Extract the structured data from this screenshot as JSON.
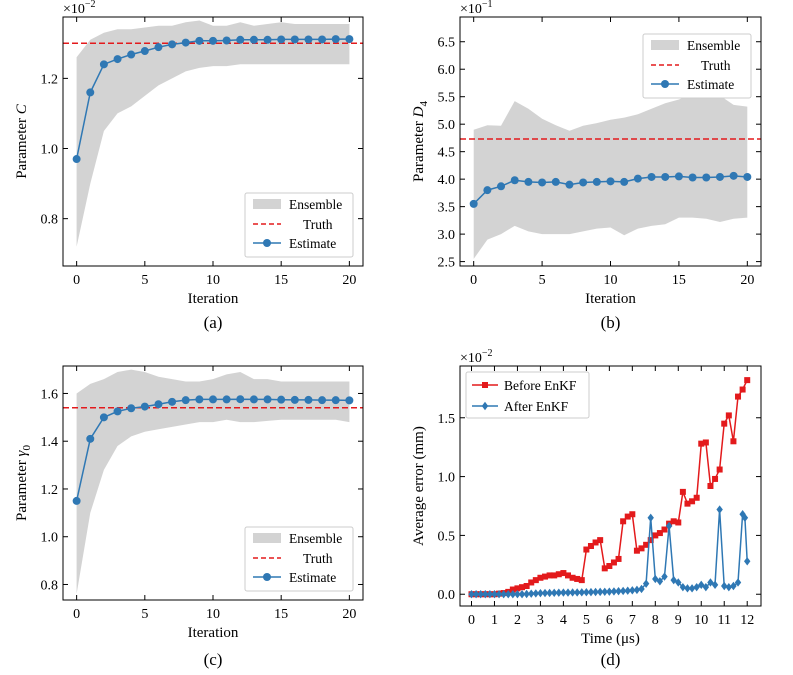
{
  "chart_data": [
    {
      "type": "line",
      "panel": "(a)",
      "xlabel": "Iteration",
      "ylabel_main": "Parameter ",
      "ylabel_italic": "C",
      "ylabel_sub": "",
      "multiplier": {
        "base": "×10",
        "exp": "−2"
      },
      "xlim": [
        -1,
        21
      ],
      "ylim": [
        0.665,
        1.375
      ],
      "xticks": [
        0,
        5,
        10,
        15,
        20
      ],
      "xtick_labels": [
        "0",
        "5",
        "10",
        "15",
        "20"
      ],
      "yticks": [
        0.8,
        1.0,
        1.2
      ],
      "ytick_labels": [
        "0.8",
        "1.0",
        "1.2"
      ],
      "truth": 1.3,
      "legend_position": "lower-right",
      "legend": [
        "Ensemble",
        "Truth",
        "Estimate"
      ],
      "x": [
        0,
        1,
        2,
        3,
        4,
        5,
        6,
        7,
        8,
        9,
        10,
        11,
        12,
        13,
        14,
        15,
        16,
        17,
        18,
        19,
        20
      ],
      "estimate": [
        0.97,
        1.16,
        1.24,
        1.255,
        1.268,
        1.278,
        1.289,
        1.297,
        1.302,
        1.307,
        1.307,
        1.308,
        1.31,
        1.31,
        1.31,
        1.311,
        1.311,
        1.311,
        1.311,
        1.312,
        1.312
      ],
      "ensemble_upper": [
        1.26,
        1.31,
        1.33,
        1.34,
        1.34,
        1.345,
        1.35,
        1.35,
        1.36,
        1.365,
        1.35,
        1.35,
        1.36,
        1.35,
        1.355,
        1.36,
        1.355,
        1.355,
        1.355,
        1.355,
        1.355
      ],
      "ensemble_lower": [
        0.72,
        0.9,
        1.05,
        1.1,
        1.12,
        1.15,
        1.18,
        1.2,
        1.22,
        1.23,
        1.235,
        1.235,
        1.24,
        1.24,
        1.24,
        1.24,
        1.24,
        1.24,
        1.24,
        1.24,
        1.24
      ]
    },
    {
      "type": "line",
      "panel": "(b)",
      "xlabel": "Iteration",
      "ylabel_main": "Parameter ",
      "ylabel_italic": "D",
      "ylabel_sub": "4",
      "multiplier": {
        "base": "×10",
        "exp": "−1"
      },
      "xlim": [
        -1,
        21
      ],
      "ylim": [
        2.42,
        6.95
      ],
      "xticks": [
        0,
        5,
        10,
        15,
        20
      ],
      "xtick_labels": [
        "0",
        "5",
        "10",
        "15",
        "20"
      ],
      "yticks": [
        2.5,
        3.0,
        3.5,
        4.0,
        4.5,
        5.0,
        5.5,
        6.0,
        6.5
      ],
      "ytick_labels": [
        "2.5",
        "3.0",
        "3.5",
        "4.0",
        "4.5",
        "5.0",
        "5.5",
        "6.0",
        "6.5"
      ],
      "truth": 4.73,
      "legend_position": "top-right",
      "legend": [
        "Ensemble",
        "Truth",
        "Estimate"
      ],
      "x": [
        0,
        1,
        2,
        3,
        4,
        5,
        6,
        7,
        8,
        9,
        10,
        11,
        12,
        13,
        14,
        15,
        16,
        17,
        18,
        19,
        20
      ],
      "estimate": [
        3.55,
        3.8,
        3.87,
        3.98,
        3.95,
        3.94,
        3.95,
        3.9,
        3.94,
        3.95,
        3.96,
        3.95,
        4.01,
        4.04,
        4.04,
        4.05,
        4.03,
        4.03,
        4.04,
        4.06,
        4.04
      ],
      "ensemble_upper": [
        4.9,
        4.98,
        4.97,
        5.42,
        5.28,
        5.1,
        4.98,
        4.88,
        4.97,
        5.02,
        5.08,
        5.12,
        5.18,
        5.28,
        5.38,
        5.45,
        5.55,
        5.58,
        5.52,
        5.35,
        5.32
      ],
      "ensemble_lower": [
        2.55,
        2.9,
        3.0,
        3.15,
        3.05,
        3.0,
        3.0,
        3.0,
        3.05,
        3.1,
        3.12,
        2.98,
        3.1,
        3.15,
        3.18,
        3.3,
        3.3,
        3.28,
        3.22,
        3.28,
        3.3
      ]
    },
    {
      "type": "line",
      "panel": "(c)",
      "xlabel": "Iteration",
      "ylabel_main": "Parameter ",
      "ylabel_italic": "γ",
      "ylabel_sub": "0",
      "multiplier": null,
      "xlim": [
        -1,
        21
      ],
      "ylim": [
        0.735,
        1.715
      ],
      "xticks": [
        0,
        5,
        10,
        15,
        20
      ],
      "xtick_labels": [
        "0",
        "5",
        "10",
        "15",
        "20"
      ],
      "yticks": [
        0.8,
        1.0,
        1.2,
        1.4,
        1.6
      ],
      "ytick_labels": [
        "0.8",
        "1.0",
        "1.2",
        "1.4",
        "1.6"
      ],
      "truth": 1.54,
      "legend_position": "lower-right",
      "legend": [
        "Ensemble",
        "Truth",
        "Estimate"
      ],
      "x": [
        0,
        1,
        2,
        3,
        4,
        5,
        6,
        7,
        8,
        9,
        10,
        11,
        12,
        13,
        14,
        15,
        16,
        17,
        18,
        19,
        20
      ],
      "estimate": [
        1.15,
        1.41,
        1.5,
        1.525,
        1.538,
        1.545,
        1.555,
        1.565,
        1.572,
        1.575,
        1.575,
        1.575,
        1.576,
        1.575,
        1.575,
        1.574,
        1.573,
        1.573,
        1.572,
        1.572,
        1.571
      ],
      "ensemble_upper": [
        1.6,
        1.64,
        1.66,
        1.69,
        1.7,
        1.69,
        1.67,
        1.66,
        1.65,
        1.65,
        1.66,
        1.68,
        1.69,
        1.66,
        1.66,
        1.65,
        1.65,
        1.65,
        1.65,
        1.65,
        1.65
      ],
      "ensemble_lower": [
        0.76,
        1.1,
        1.28,
        1.38,
        1.42,
        1.44,
        1.45,
        1.46,
        1.47,
        1.48,
        1.48,
        1.49,
        1.48,
        1.48,
        1.485,
        1.49,
        1.49,
        1.49,
        1.49,
        1.49,
        1.48
      ]
    },
    {
      "type": "line",
      "panel": "(d)",
      "xlabel": "Time (μs)",
      "ylabel_main": "Average error (mm)",
      "ylabel_italic": "",
      "ylabel_sub": "",
      "multiplier": {
        "base": "×10",
        "exp": "−2"
      },
      "xlim": [
        -0.5,
        12.6
      ],
      "ylim": [
        -0.1,
        1.94
      ],
      "xticks": [
        0,
        1,
        2,
        3,
        4,
        5,
        6,
        7,
        8,
        9,
        10,
        11,
        12
      ],
      "xtick_labels": [
        "0",
        "1",
        "2",
        "3",
        "4",
        "5",
        "6",
        "7",
        "8",
        "9",
        "10",
        "11",
        "12"
      ],
      "yticks": [
        0.0,
        0.5,
        1.0,
        1.5
      ],
      "ytick_labels": [
        "0.0",
        "0.5",
        "1.0",
        "1.5"
      ],
      "legend_position": "top-left",
      "series": [
        {
          "name": "Before EnKF",
          "color": "#e31a1c",
          "marker": "square",
          "points": [
            [
              0,
              0
            ],
            [
              0.2,
              0
            ],
            [
              0.4,
              0
            ],
            [
              0.6,
              0
            ],
            [
              0.8,
              0
            ],
            [
              1.0,
              0
            ],
            [
              1.2,
              0.005
            ],
            [
              1.4,
              0.01
            ],
            [
              1.6,
              0.02
            ],
            [
              1.8,
              0.04
            ],
            [
              2.0,
              0.05
            ],
            [
              2.2,
              0.06
            ],
            [
              2.4,
              0.07
            ],
            [
              2.6,
              0.1
            ],
            [
              2.8,
              0.12
            ],
            [
              3.0,
              0.14
            ],
            [
              3.2,
              0.15
            ],
            [
              3.4,
              0.16
            ],
            [
              3.6,
              0.16
            ],
            [
              3.8,
              0.17
            ],
            [
              4.0,
              0.18
            ],
            [
              4.2,
              0.16
            ],
            [
              4.4,
              0.14
            ],
            [
              4.6,
              0.13
            ],
            [
              4.8,
              0.12
            ],
            [
              5.0,
              0.38
            ],
            [
              5.2,
              0.41
            ],
            [
              5.4,
              0.44
            ],
            [
              5.6,
              0.46
            ],
            [
              5.8,
              0.22
            ],
            [
              6.0,
              0.24
            ],
            [
              6.2,
              0.27
            ],
            [
              6.4,
              0.3
            ],
            [
              6.6,
              0.62
            ],
            [
              6.8,
              0.66
            ],
            [
              7.0,
              0.68
            ],
            [
              7.2,
              0.37
            ],
            [
              7.4,
              0.39
            ],
            [
              7.6,
              0.42
            ],
            [
              7.8,
              0.46
            ],
            [
              8.0,
              0.5
            ],
            [
              8.2,
              0.52
            ],
            [
              8.4,
              0.55
            ],
            [
              8.6,
              0.6
            ],
            [
              8.8,
              0.62
            ],
            [
              9.0,
              0.61
            ],
            [
              9.2,
              0.87
            ],
            [
              9.4,
              0.77
            ],
            [
              9.6,
              0.79
            ],
            [
              9.8,
              0.82
            ],
            [
              10.0,
              1.28
            ],
            [
              10.2,
              1.29
            ],
            [
              10.4,
              0.92
            ],
            [
              10.6,
              0.98
            ],
            [
              10.8,
              1.06
            ],
            [
              11.0,
              1.45
            ],
            [
              11.2,
              1.52
            ],
            [
              11.4,
              1.3
            ],
            [
              11.6,
              1.68
            ],
            [
              11.8,
              1.74
            ],
            [
              12.0,
              1.82
            ]
          ]
        },
        {
          "name": "After EnKF",
          "color": "#2f78b4",
          "marker": "diamond",
          "points": [
            [
              0,
              0
            ],
            [
              0.2,
              0
            ],
            [
              0.4,
              0
            ],
            [
              0.6,
              0
            ],
            [
              0.8,
              0
            ],
            [
              1.0,
              0
            ],
            [
              1.2,
              0
            ],
            [
              1.4,
              0
            ],
            [
              1.6,
              0
            ],
            [
              1.8,
              0
            ],
            [
              2.0,
              0
            ],
            [
              2.2,
              0
            ],
            [
              2.4,
              0.002
            ],
            [
              2.6,
              0.005
            ],
            [
              2.8,
              0.007
            ],
            [
              3.0,
              0.009
            ],
            [
              3.2,
              0.01
            ],
            [
              3.4,
              0.011
            ],
            [
              3.6,
              0.012
            ],
            [
              3.8,
              0.013
            ],
            [
              4.0,
              0.014
            ],
            [
              4.2,
              0.014
            ],
            [
              4.4,
              0.015
            ],
            [
              4.6,
              0.015
            ],
            [
              4.8,
              0.016
            ],
            [
              5.0,
              0.017
            ],
            [
              5.2,
              0.018
            ],
            [
              5.4,
              0.019
            ],
            [
              5.6,
              0.02
            ],
            [
              5.8,
              0.021
            ],
            [
              6.0,
              0.022
            ],
            [
              6.2,
              0.024
            ],
            [
              6.4,
              0.026
            ],
            [
              6.6,
              0.028
            ],
            [
              6.8,
              0.03
            ],
            [
              7.0,
              0.033
            ],
            [
              7.2,
              0.037
            ],
            [
              7.4,
              0.045
            ],
            [
              7.6,
              0.09
            ],
            [
              7.8,
              0.65
            ],
            [
              8.0,
              0.13
            ],
            [
              8.2,
              0.11
            ],
            [
              8.4,
              0.15
            ],
            [
              8.6,
              0.58
            ],
            [
              8.8,
              0.12
            ],
            [
              9.0,
              0.1
            ],
            [
              9.2,
              0.06
            ],
            [
              9.4,
              0.05
            ],
            [
              9.6,
              0.05
            ],
            [
              9.8,
              0.06
            ],
            [
              10.0,
              0.08
            ],
            [
              10.2,
              0.06
            ],
            [
              10.4,
              0.1
            ],
            [
              10.6,
              0.08
            ],
            [
              10.8,
              0.72
            ],
            [
              11.0,
              0.07
            ],
            [
              11.2,
              0.06
            ],
            [
              11.4,
              0.07
            ],
            [
              11.6,
              0.1
            ],
            [
              11.8,
              0.68
            ],
            [
              11.9,
              0.65
            ],
            [
              12.0,
              0.28
            ]
          ]
        }
      ],
      "legend": [
        "Before EnKF",
        "After EnKF"
      ]
    }
  ],
  "colors": {
    "ensemble_fill": "#d3d3d3",
    "truth_line": "#e31a1c",
    "estimate_line": "#2f78b4"
  }
}
